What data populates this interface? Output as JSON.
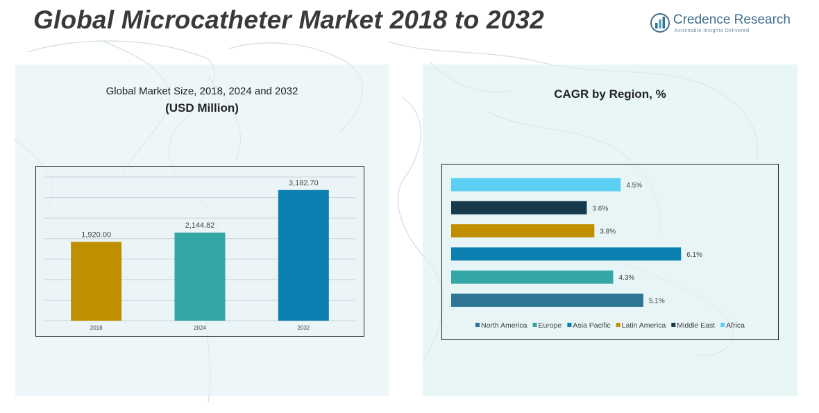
{
  "page": {
    "title": "Global Microcatheter Market 2018 to 2032"
  },
  "logo": {
    "name": "Credence Research",
    "tagline": "Actionable Insights Delivered",
    "icon": "bar-chart-logo-icon"
  },
  "colors": {
    "gold": "#BF8F00",
    "teal": "#33A6A6",
    "blue": "#0B7FB0",
    "steel": "#2E7694",
    "navy": "#173B4C",
    "sky": "#5CCFF4"
  },
  "left_panel": {
    "subtitle": "Global Market Size, 2018, 2024 and 2032",
    "subtitle_bold": "(USD Million)"
  },
  "right_panel": {
    "heading": "CAGR by Region, %"
  },
  "chart_data": [
    {
      "type": "bar",
      "categories": [
        "2018",
        "2024",
        "2032"
      ],
      "values": [
        1920.0,
        2144.82,
        3182.7
      ],
      "data_labels": [
        "1,920.00",
        "2,144.82",
        "3,182.70"
      ],
      "colors": [
        "#BF8F00",
        "#33A6A6",
        "#0B7FB0"
      ],
      "ylim": [
        0,
        3500
      ],
      "grid": true
    },
    {
      "type": "bar",
      "orientation": "horizontal",
      "categories": [
        "North America",
        "Europe",
        "Asia Pacific",
        "Latin America",
        "Middle East",
        "Africa"
      ],
      "values": [
        5.1,
        4.3,
        6.1,
        3.8,
        3.6,
        4.5
      ],
      "data_labels": [
        "5.1%",
        "4.3%",
        "6.1%",
        "3.8%",
        "3.6%",
        "4.5%"
      ],
      "colors": [
        "#2E7694",
        "#33A6A6",
        "#0B7FB0",
        "#BF8F00",
        "#173B4C",
        "#5CCFF4"
      ],
      "xlim": [
        0,
        6.5
      ],
      "legend_position": "bottom"
    }
  ]
}
